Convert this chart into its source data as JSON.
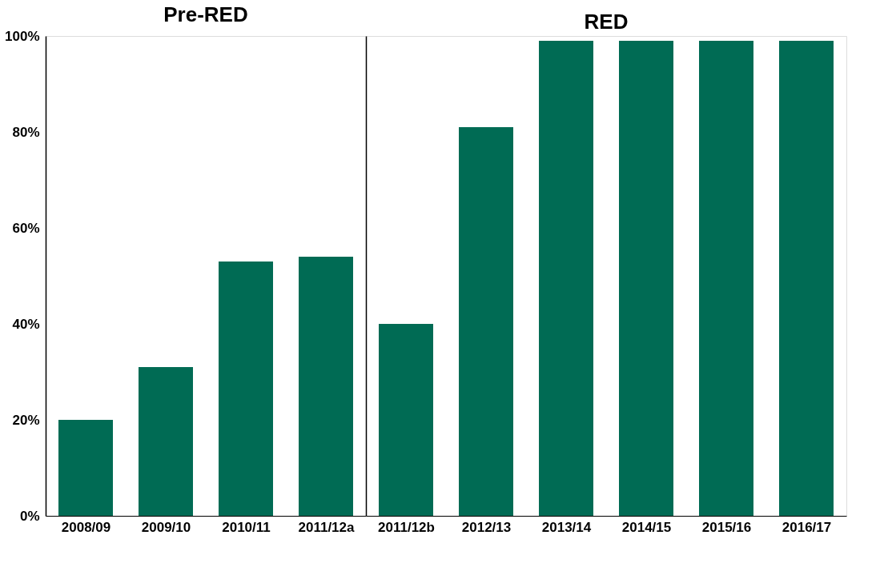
{
  "chart_data": [
    {
      "type": "bar",
      "title": "Pre-RED",
      "categories": [
        "2008/09",
        "2009/10",
        "2010/11",
        "2011/12a"
      ],
      "values": [
        20,
        31,
        53,
        54
      ],
      "color": "#006b54",
      "ylim": [
        0,
        100
      ],
      "yticks": [
        {
          "value": 0,
          "label": "0%"
        },
        {
          "value": 20,
          "label": "20%"
        },
        {
          "value": 40,
          "label": "40%"
        },
        {
          "value": 60,
          "label": "60%"
        },
        {
          "value": 80,
          "label": "80%"
        },
        {
          "value": 100,
          "label": "100%"
        }
      ],
      "grid": false
    },
    {
      "type": "bar",
      "title": "RED",
      "categories": [
        "2011/12b",
        "2012/13",
        "2013/14",
        "2014/15",
        "2015/16",
        "2016/17"
      ],
      "values": [
        40,
        81,
        99,
        99,
        99,
        99
      ],
      "color": "#006b54",
      "ylim": [
        0,
        100
      ],
      "yticks": [
        {
          "value": 0,
          "label": null
        },
        {
          "value": 20,
          "label": null
        },
        {
          "value": 40,
          "label": null
        },
        {
          "value": 60,
          "label": null
        },
        {
          "value": 80,
          "label": null
        },
        {
          "value": 100,
          "label": null
        }
      ],
      "grid": false,
      "tick_labels": "x"
    }
  ]
}
